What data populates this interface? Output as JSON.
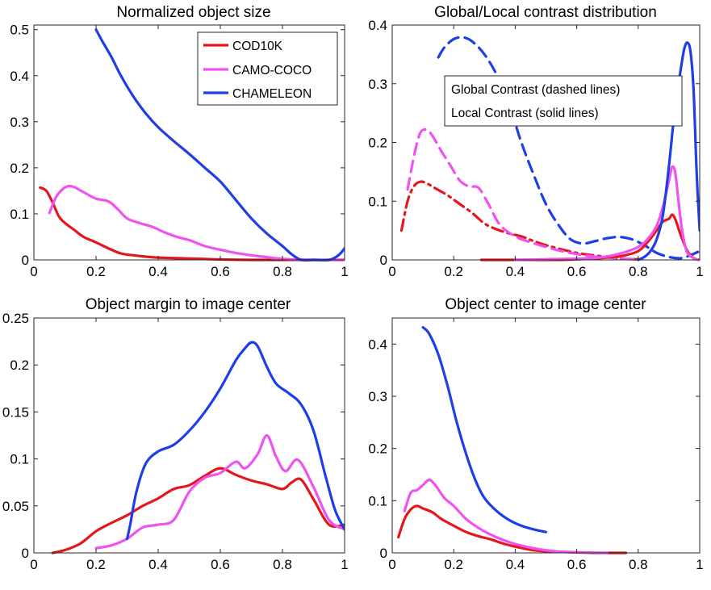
{
  "colors": {
    "COD10K": "#e4171c",
    "CAMO-COCO": "#f052f0",
    "CHAMELEON": "#1e3ee6"
  },
  "chart_data": [
    {
      "type": "line",
      "title": "Normalized object size",
      "xlim": [
        0,
        1
      ],
      "ylim": [
        0,
        0.51
      ],
      "xticks": [
        0,
        0.2,
        0.4,
        0.6,
        0.8,
        1
      ],
      "yticks": [
        0,
        0.1,
        0.2,
        0.3,
        0.4,
        0.5
      ],
      "xtick_labels": [
        "0",
        "0.2",
        "0.4",
        "0.6",
        "0.8",
        "1"
      ],
      "ytick_labels": [
        "0",
        "0.1",
        "0.2",
        "0.3",
        "0.4",
        "0.5"
      ],
      "legend": {
        "placement": "top-right",
        "entries": [
          "COD10K",
          "CAMO-COCO",
          "CHAMELEON"
        ]
      },
      "series": [
        {
          "name": "COD10K",
          "color": "#e4171c",
          "style": "solid",
          "x": [
            0.02,
            0.04,
            0.06,
            0.08,
            0.1,
            0.13,
            0.16,
            0.2,
            0.24,
            0.28,
            0.32,
            0.36,
            0.4,
            0.45,
            0.5,
            0.55,
            0.6,
            0.7,
            0.8,
            0.9,
            1.0
          ],
          "y": [
            0.157,
            0.15,
            0.125,
            0.095,
            0.08,
            0.065,
            0.05,
            0.038,
            0.025,
            0.014,
            0.01,
            0.007,
            0.005,
            0.004,
            0.003,
            0.002,
            0.001,
            0.0,
            0.0,
            0.0,
            0.0
          ]
        },
        {
          "name": "CAMO-COCO",
          "color": "#f052f0",
          "style": "solid",
          "x": [
            0.05,
            0.07,
            0.09,
            0.11,
            0.13,
            0.16,
            0.2,
            0.24,
            0.27,
            0.3,
            0.34,
            0.38,
            0.42,
            0.46,
            0.5,
            0.55,
            0.6,
            0.65,
            0.7,
            0.75,
            0.8,
            0.9,
            1.0
          ],
          "y": [
            0.102,
            0.135,
            0.152,
            0.16,
            0.158,
            0.147,
            0.133,
            0.127,
            0.11,
            0.09,
            0.08,
            0.072,
            0.06,
            0.05,
            0.043,
            0.03,
            0.022,
            0.015,
            0.01,
            0.006,
            0.002,
            0.0,
            0.0
          ]
        },
        {
          "name": "CHAMELEON",
          "color": "#1e3ee6",
          "style": "solid",
          "x": [
            0.2,
            0.22,
            0.25,
            0.28,
            0.32,
            0.36,
            0.4,
            0.45,
            0.5,
            0.55,
            0.6,
            0.65,
            0.7,
            0.75,
            0.8,
            0.83,
            0.86,
            0.9,
            0.95,
            0.98,
            1.0
          ],
          "y": [
            0.5,
            0.475,
            0.44,
            0.4,
            0.355,
            0.318,
            0.288,
            0.258,
            0.23,
            0.2,
            0.17,
            0.13,
            0.09,
            0.057,
            0.03,
            0.012,
            0.0,
            0.0,
            0.0,
            0.01,
            0.025
          ]
        }
      ]
    },
    {
      "type": "line",
      "title": "Global/Local contrast distribution",
      "xlim": [
        0,
        1
      ],
      "ylim": [
        0,
        0.4
      ],
      "xticks": [
        0,
        0.2,
        0.4,
        0.6,
        0.8,
        1
      ],
      "yticks": [
        0,
        0.1,
        0.2,
        0.3,
        0.4
      ],
      "xtick_labels": [
        "0",
        "0.2",
        "0.4",
        "0.6",
        "0.8",
        "1"
      ],
      "ytick_labels": [
        "0",
        "0.1",
        "0.2",
        "0.3",
        "0.4"
      ],
      "annotation": [
        "Global Contrast (dashed lines)",
        "Local Contrast (solid lines)"
      ],
      "series": [
        {
          "name": "COD10K (global)",
          "color": "#e4171c",
          "style": "dashdot",
          "x": [
            0.03,
            0.05,
            0.07,
            0.09,
            0.11,
            0.14,
            0.18,
            0.22,
            0.26,
            0.3,
            0.34,
            0.38,
            0.42,
            0.46,
            0.5,
            0.55,
            0.6,
            0.65,
            0.7,
            0.75,
            0.8
          ],
          "y": [
            0.05,
            0.1,
            0.125,
            0.133,
            0.131,
            0.122,
            0.11,
            0.095,
            0.08,
            0.062,
            0.052,
            0.045,
            0.04,
            0.032,
            0.025,
            0.018,
            0.012,
            0.008,
            0.005,
            0.002,
            0.001
          ]
        },
        {
          "name": "CAMO-COCO (global)",
          "color": "#f052f0",
          "style": "dashed",
          "x": [
            0.05,
            0.07,
            0.09,
            0.11,
            0.13,
            0.16,
            0.19,
            0.22,
            0.25,
            0.28,
            0.31,
            0.35,
            0.4,
            0.45,
            0.5,
            0.55,
            0.6,
            0.65,
            0.7,
            0.75,
            0.8
          ],
          "y": [
            0.12,
            0.175,
            0.215,
            0.222,
            0.212,
            0.185,
            0.16,
            0.135,
            0.125,
            0.123,
            0.098,
            0.06,
            0.04,
            0.03,
            0.022,
            0.015,
            0.01,
            0.006,
            0.004,
            0.002,
            0.001
          ]
        },
        {
          "name": "CHAMELEON (global)",
          "color": "#1e3ee6",
          "style": "dashed",
          "x": [
            0.15,
            0.17,
            0.2,
            0.23,
            0.26,
            0.3,
            0.34,
            0.38,
            0.42,
            0.46,
            0.5,
            0.54,
            0.58,
            0.62,
            0.66,
            0.7,
            0.74,
            0.78,
            0.82,
            0.86,
            0.9,
            0.94,
            0.97,
            1.0
          ],
          "y": [
            0.345,
            0.362,
            0.376,
            0.379,
            0.372,
            0.35,
            0.315,
            0.265,
            0.2,
            0.145,
            0.095,
            0.06,
            0.035,
            0.028,
            0.032,
            0.037,
            0.039,
            0.035,
            0.025,
            0.012,
            0.005,
            0.003,
            0.008,
            0.015
          ]
        },
        {
          "name": "COD10K (local)",
          "color": "#e4171c",
          "style": "solid",
          "x": [
            0.29,
            0.35,
            0.4,
            0.45,
            0.5,
            0.55,
            0.6,
            0.65,
            0.7,
            0.75,
            0.8,
            0.83,
            0.86,
            0.88,
            0.9,
            0.91,
            0.92,
            0.93,
            0.94,
            0.96,
            0.98,
            1.0
          ],
          "y": [
            0.0,
            0.0,
            0.0,
            0.0,
            0.0,
            0.0,
            0.001,
            0.002,
            0.004,
            0.007,
            0.015,
            0.03,
            0.05,
            0.065,
            0.07,
            0.077,
            0.07,
            0.055,
            0.04,
            0.015,
            0.003,
            0.0
          ]
        },
        {
          "name": "CAMO-COCO (local)",
          "color": "#f052f0",
          "style": "solid",
          "x": [
            0.4,
            0.5,
            0.6,
            0.65,
            0.7,
            0.75,
            0.8,
            0.83,
            0.86,
            0.88,
            0.9,
            0.91,
            0.92,
            0.93,
            0.94,
            0.95,
            0.96,
            0.98,
            1.0
          ],
          "y": [
            0.0,
            0.001,
            0.002,
            0.003,
            0.006,
            0.012,
            0.022,
            0.035,
            0.058,
            0.09,
            0.135,
            0.158,
            0.15,
            0.105,
            0.06,
            0.03,
            0.012,
            0.003,
            0.0
          ]
        },
        {
          "name": "CHAMELEON (local)",
          "color": "#1e3ee6",
          "style": "solid",
          "x": [
            0.8,
            0.82,
            0.84,
            0.86,
            0.88,
            0.9,
            0.92,
            0.94,
            0.95,
            0.96,
            0.97,
            0.98,
            0.99,
            1.0
          ],
          "y": [
            0.0,
            0.005,
            0.015,
            0.035,
            0.075,
            0.16,
            0.26,
            0.33,
            0.36,
            0.37,
            0.355,
            0.29,
            0.15,
            0.05
          ]
        }
      ]
    },
    {
      "type": "line",
      "title": "Object margin to image center",
      "xlim": [
        0,
        1
      ],
      "ylim": [
        0,
        0.25
      ],
      "xticks": [
        0,
        0.2,
        0.4,
        0.6,
        0.8,
        1
      ],
      "yticks": [
        0,
        0.05,
        0.1,
        0.15,
        0.2,
        0.25
      ],
      "xtick_labels": [
        "0",
        "0.2",
        "0.4",
        "0.6",
        "0.8",
        "1"
      ],
      "ytick_labels": [
        "0",
        "0.05",
        "0.1",
        "0.15",
        "0.2",
        "0.25"
      ],
      "series": [
        {
          "name": "COD10K",
          "color": "#e4171c",
          "style": "solid",
          "x": [
            0.06,
            0.1,
            0.15,
            0.2,
            0.25,
            0.3,
            0.35,
            0.4,
            0.45,
            0.5,
            0.55,
            0.6,
            0.65,
            0.7,
            0.75,
            0.8,
            0.83,
            0.86,
            0.9,
            0.95,
            1.0
          ],
          "y": [
            0.0,
            0.003,
            0.01,
            0.023,
            0.032,
            0.04,
            0.05,
            0.058,
            0.068,
            0.072,
            0.082,
            0.09,
            0.083,
            0.077,
            0.073,
            0.068,
            0.075,
            0.078,
            0.057,
            0.03,
            0.03
          ]
        },
        {
          "name": "CAMO-COCO",
          "color": "#f052f0",
          "style": "solid",
          "x": [
            0.2,
            0.25,
            0.3,
            0.35,
            0.4,
            0.45,
            0.5,
            0.55,
            0.6,
            0.65,
            0.68,
            0.72,
            0.75,
            0.78,
            0.81,
            0.85,
            0.9,
            0.95,
            1.0
          ],
          "y": [
            0.005,
            0.008,
            0.015,
            0.027,
            0.03,
            0.035,
            0.065,
            0.08,
            0.085,
            0.097,
            0.09,
            0.105,
            0.125,
            0.102,
            0.087,
            0.099,
            0.07,
            0.035,
            0.025
          ]
        },
        {
          "name": "CHAMELEON",
          "color": "#1e3ee6",
          "style": "solid",
          "x": [
            0.3,
            0.31,
            0.33,
            0.36,
            0.4,
            0.45,
            0.5,
            0.55,
            0.6,
            0.65,
            0.68,
            0.7,
            0.72,
            0.75,
            0.78,
            0.82,
            0.86,
            0.9,
            0.94,
            0.97,
            1.0
          ],
          "y": [
            0.015,
            0.03,
            0.065,
            0.095,
            0.108,
            0.115,
            0.13,
            0.15,
            0.175,
            0.205,
            0.218,
            0.224,
            0.22,
            0.198,
            0.18,
            0.17,
            0.158,
            0.13,
            0.08,
            0.045,
            0.025
          ]
        }
      ]
    },
    {
      "type": "line",
      "title": "Object center to image center",
      "xlim": [
        0,
        1
      ],
      "ylim": [
        0,
        0.45
      ],
      "xticks": [
        0,
        0.2,
        0.4,
        0.6,
        0.8,
        1
      ],
      "yticks": [
        0,
        0.1,
        0.2,
        0.3,
        0.4
      ],
      "xtick_labels": [
        "0",
        "0.2",
        "0.4",
        "0.6",
        "0.8",
        "1"
      ],
      "ytick_labels": [
        "0",
        "0.1",
        "0.2",
        "0.3",
        "0.4"
      ],
      "series": [
        {
          "name": "COD10K",
          "color": "#e4171c",
          "style": "solid",
          "x": [
            0.02,
            0.04,
            0.06,
            0.08,
            0.1,
            0.13,
            0.16,
            0.2,
            0.24,
            0.28,
            0.32,
            0.36,
            0.4,
            0.45,
            0.5,
            0.55,
            0.6,
            0.65,
            0.7,
            0.76
          ],
          "y": [
            0.03,
            0.065,
            0.083,
            0.09,
            0.085,
            0.078,
            0.065,
            0.052,
            0.04,
            0.032,
            0.026,
            0.018,
            0.012,
            0.006,
            0.003,
            0.002,
            0.001,
            0.0,
            0.0,
            0.0
          ]
        },
        {
          "name": "CAMO-COCO",
          "color": "#f052f0",
          "style": "solid",
          "x": [
            0.04,
            0.06,
            0.08,
            0.1,
            0.12,
            0.14,
            0.17,
            0.2,
            0.24,
            0.28,
            0.32,
            0.36,
            0.4,
            0.45,
            0.5,
            0.55,
            0.6,
            0.7
          ],
          "y": [
            0.08,
            0.115,
            0.12,
            0.13,
            0.14,
            0.13,
            0.105,
            0.09,
            0.065,
            0.048,
            0.035,
            0.025,
            0.017,
            0.01,
            0.005,
            0.002,
            0.001,
            0.0
          ]
        },
        {
          "name": "CHAMELEON",
          "color": "#1e3ee6",
          "style": "solid",
          "x": [
            0.1,
            0.12,
            0.15,
            0.18,
            0.21,
            0.24,
            0.27,
            0.3,
            0.34,
            0.38,
            0.42,
            0.46,
            0.5
          ],
          "y": [
            0.432,
            0.42,
            0.38,
            0.32,
            0.25,
            0.19,
            0.14,
            0.105,
            0.08,
            0.063,
            0.052,
            0.045,
            0.04
          ]
        }
      ]
    }
  ]
}
